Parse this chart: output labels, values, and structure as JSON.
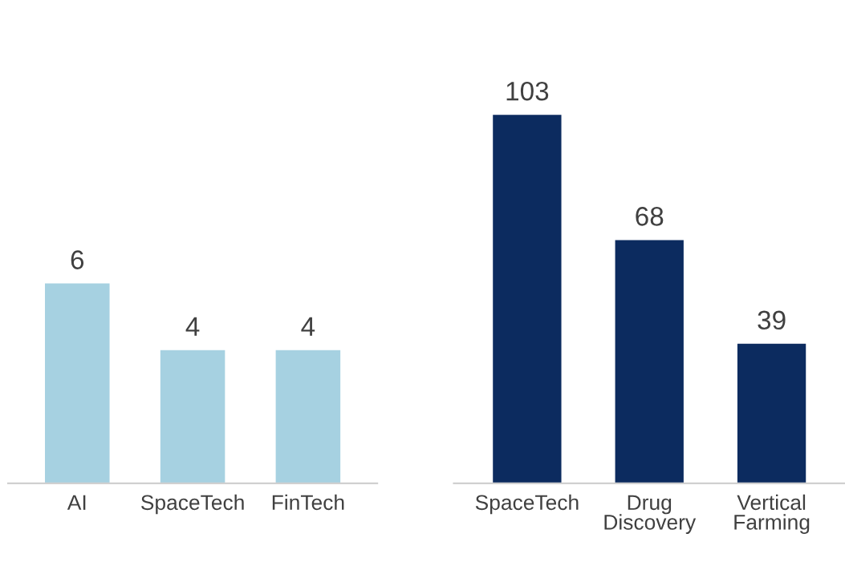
{
  "chart_data": [
    {
      "type": "bar",
      "categories": [
        "AI",
        "SpaceTech",
        "FinTech"
      ],
      "values": [
        6,
        4,
        4
      ],
      "color": "#a6d1e1",
      "data_labels": true
    },
    {
      "type": "bar",
      "categories": [
        "SpaceTech",
        "Drug\nDiscovery",
        "Vertical\nFarming"
      ],
      "values": [
        103,
        68,
        39
      ],
      "color": "#0c2b5f",
      "data_labels": true
    }
  ]
}
